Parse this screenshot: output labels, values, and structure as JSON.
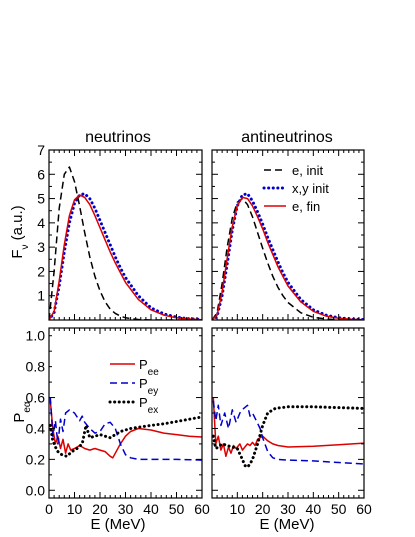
{
  "chart_data": [
    {
      "type": "line",
      "panel": "top-left",
      "title": "neutrinos",
      "xlabel": "",
      "ylabel": "F_ν (a.u.)",
      "xlim": [
        0,
        60
      ],
      "ylim": [
        0,
        7
      ],
      "yticks": [
        "1",
        "2",
        "3",
        "4",
        "5",
        "6",
        "7"
      ],
      "x": [
        0,
        2,
        4,
        6,
        8,
        10,
        12,
        14,
        16,
        18,
        20,
        22,
        24,
        26,
        28,
        30,
        35,
        40,
        45,
        50,
        55,
        60
      ],
      "series": [
        {
          "name": "e, init",
          "color": "#000000",
          "dash": "dashed",
          "values": [
            0,
            2.0,
            4.6,
            6.0,
            6.3,
            5.7,
            4.7,
            3.6,
            2.6,
            1.8,
            1.2,
            0.75,
            0.45,
            0.27,
            0.16,
            0.09,
            0.02,
            0,
            0,
            0,
            0,
            0
          ]
        },
        {
          "name": "x,y init",
          "color": "#0000cc",
          "dash": "dotted",
          "values": [
            0,
            0.3,
            1.4,
            2.8,
            4.0,
            4.8,
            5.15,
            5.2,
            5.0,
            4.6,
            4.1,
            3.6,
            3.1,
            2.6,
            2.15,
            1.75,
            1.0,
            0.5,
            0.25,
            0.12,
            0.05,
            0.02
          ]
        },
        {
          "name": "e, fin",
          "color": "#dd0000",
          "dash": "solid",
          "values": [
            0,
            0.35,
            1.6,
            3.1,
            4.3,
            4.95,
            5.15,
            5.05,
            4.75,
            4.3,
            3.8,
            3.3,
            2.8,
            2.35,
            1.95,
            1.55,
            0.85,
            0.42,
            0.2,
            0.09,
            0.04,
            0.01
          ]
        }
      ]
    },
    {
      "type": "line",
      "panel": "top-right",
      "title": "antineutrinos",
      "xlabel": "",
      "ylabel": "",
      "xlim": [
        0,
        60
      ],
      "ylim": [
        0,
        7
      ],
      "legend": [
        {
          "label": "e, init",
          "color": "#000000",
          "dash": "dashed"
        },
        {
          "label": "x,y init",
          "color": "#0000cc",
          "dash": "dotted"
        },
        {
          "label": "e, fin",
          "color": "#dd0000",
          "dash": "solid"
        }
      ],
      "x": [
        0,
        2,
        4,
        6,
        8,
        10,
        12,
        14,
        16,
        18,
        20,
        22,
        24,
        26,
        28,
        30,
        35,
        40,
        45,
        50,
        55,
        60
      ],
      "series": [
        {
          "name": "e, init",
          "color": "#000000",
          "dash": "dashed",
          "values": [
            0,
            0.3,
            1.5,
            3.0,
            4.2,
            4.85,
            5.0,
            4.75,
            4.25,
            3.6,
            2.95,
            2.35,
            1.8,
            1.35,
            1.0,
            0.72,
            0.3,
            0.11,
            0.04,
            0.01,
            0,
            0
          ]
        },
        {
          "name": "x,y init",
          "color": "#0000cc",
          "dash": "dotted",
          "values": [
            0,
            0.15,
            1.0,
            2.3,
            3.7,
            4.7,
            5.15,
            5.2,
            4.9,
            4.45,
            3.95,
            3.4,
            2.9,
            2.4,
            1.95,
            1.55,
            0.85,
            0.42,
            0.2,
            0.09,
            0.04,
            0.02
          ]
        },
        {
          "name": "e, fin",
          "color": "#dd0000",
          "dash": "solid",
          "values": [
            0,
            0.2,
            1.15,
            2.55,
            3.85,
            4.7,
            5.05,
            5.0,
            4.7,
            4.25,
            3.75,
            3.2,
            2.7,
            2.2,
            1.8,
            1.4,
            0.75,
            0.36,
            0.16,
            0.07,
            0.03,
            0.01
          ]
        }
      ]
    },
    {
      "type": "line",
      "panel": "bottom-left",
      "title": "",
      "xlabel": "E (MeV)",
      "ylabel": "P_eα",
      "xlim": [
        0,
        60
      ],
      "ylim": [
        -0.05,
        1.05
      ],
      "xticks": [
        "0",
        "10",
        "20",
        "30",
        "40",
        "50",
        "60"
      ],
      "yticks": [
        "0.0",
        "0.2",
        "0.4",
        "0.6",
        "0.8",
        "1.0"
      ],
      "legend": [
        {
          "label": "P",
          "sub": "ee",
          "color": "#dd0000",
          "dash": "solid"
        },
        {
          "label": "P",
          "sub": "ey",
          "color": "#0000cc",
          "dash": "dashed"
        },
        {
          "label": "P",
          "sub": "ex",
          "color": "#000000",
          "dash": "dotted"
        }
      ],
      "series": [
        {
          "name": "Pee",
          "color": "#dd0000",
          "dash": "solid",
          "points": [
            [
              0.5,
              0.58
            ],
            [
              1.5,
              0.4
            ],
            [
              2.5,
              0.3
            ],
            [
              3.5,
              0.35
            ],
            [
              4.5,
              0.27
            ],
            [
              5.5,
              0.33
            ],
            [
              6.5,
              0.24
            ],
            [
              7.5,
              0.3
            ],
            [
              8.5,
              0.26
            ],
            [
              10,
              0.27
            ],
            [
              12,
              0.29
            ],
            [
              14,
              0.27
            ],
            [
              16,
              0.26
            ],
            [
              18,
              0.27
            ],
            [
              20,
              0.26
            ],
            [
              22,
              0.25
            ],
            [
              24,
              0.22
            ],
            [
              25,
              0.21
            ],
            [
              26,
              0.24
            ],
            [
              28,
              0.3
            ],
            [
              30,
              0.35
            ],
            [
              32,
              0.38
            ],
            [
              35,
              0.4
            ],
            [
              40,
              0.39
            ],
            [
              45,
              0.37
            ],
            [
              50,
              0.36
            ],
            [
              55,
              0.35
            ],
            [
              60,
              0.345
            ]
          ]
        },
        {
          "name": "Pey",
          "color": "#0000cc",
          "dash": "dashed",
          "points": [
            [
              0.5,
              0.6
            ],
            [
              1.5,
              0.35
            ],
            [
              2.5,
              0.45
            ],
            [
              3.5,
              0.3
            ],
            [
              4.5,
              0.46
            ],
            [
              5.5,
              0.38
            ],
            [
              6.5,
              0.5
            ],
            [
              8,
              0.52
            ],
            [
              10,
              0.5
            ],
            [
              12,
              0.45
            ],
            [
              13,
              0.48
            ],
            [
              14,
              0.44
            ],
            [
              16,
              0.4
            ],
            [
              18,
              0.37
            ],
            [
              20,
              0.38
            ],
            [
              22,
              0.43
            ],
            [
              24,
              0.44
            ],
            [
              26,
              0.4
            ],
            [
              28,
              0.3
            ],
            [
              30,
              0.23
            ],
            [
              32,
              0.21
            ],
            [
              35,
              0.2
            ],
            [
              40,
              0.2
            ],
            [
              50,
              0.2
            ],
            [
              60,
              0.195
            ]
          ]
        },
        {
          "name": "Pex",
          "color": "#000000",
          "dash": "dotted",
          "points": [
            [
              0.5,
              0.42
            ],
            [
              1.5,
              0.32
            ],
            [
              2.5,
              0.28
            ],
            [
              3.5,
              0.25
            ],
            [
              5,
              0.23
            ],
            [
              7,
              0.22
            ],
            [
              9,
              0.25
            ],
            [
              11,
              0.27
            ],
            [
              13,
              0.3
            ],
            [
              14.5,
              0.42
            ],
            [
              16,
              0.34
            ],
            [
              18,
              0.35
            ],
            [
              20,
              0.36
            ],
            [
              22,
              0.35
            ],
            [
              24,
              0.34
            ],
            [
              26,
              0.36
            ],
            [
              28,
              0.38
            ],
            [
              32,
              0.4
            ],
            [
              36,
              0.41
            ],
            [
              40,
              0.42
            ],
            [
              45,
              0.43
            ],
            [
              50,
              0.445
            ],
            [
              55,
              0.46
            ],
            [
              60,
              0.475
            ]
          ]
        }
      ]
    },
    {
      "type": "line",
      "panel": "bottom-right",
      "title": "",
      "xlabel": "E (MeV)",
      "ylabel": "",
      "xlim": [
        0,
        60
      ],
      "ylim": [
        -0.05,
        1.05
      ],
      "xticks": [
        "10",
        "20",
        "30",
        "40",
        "50",
        "60"
      ],
      "series": [
        {
          "name": "Pee",
          "color": "#dd0000",
          "dash": "solid",
          "points": [
            [
              0.5,
              0.6
            ],
            [
              1.5,
              0.3
            ],
            [
              2.5,
              0.35
            ],
            [
              3.5,
              0.26
            ],
            [
              4.5,
              0.3
            ],
            [
              5.5,
              0.22
            ],
            [
              6.5,
              0.28
            ],
            [
              7.5,
              0.24
            ],
            [
              8.5,
              0.29
            ],
            [
              9.5,
              0.27
            ],
            [
              11,
              0.3
            ],
            [
              12,
              0.26
            ],
            [
              13,
              0.28
            ],
            [
              14,
              0.3
            ],
            [
              15,
              0.29
            ],
            [
              16,
              0.31
            ],
            [
              17,
              0.29
            ],
            [
              18,
              0.33
            ],
            [
              20,
              0.35
            ],
            [
              22,
              0.32
            ],
            [
              24,
              0.3
            ],
            [
              26,
              0.29
            ],
            [
              30,
              0.28
            ],
            [
              40,
              0.285
            ],
            [
              50,
              0.295
            ],
            [
              60,
              0.305
            ]
          ]
        },
        {
          "name": "Pey",
          "color": "#0000cc",
          "dash": "dashed",
          "points": [
            [
              0.5,
              0.58
            ],
            [
              1.5,
              0.45
            ],
            [
              2.5,
              0.55
            ],
            [
              3.5,
              0.42
            ],
            [
              5,
              0.5
            ],
            [
              6.5,
              0.4
            ],
            [
              8,
              0.52
            ],
            [
              9.5,
              0.44
            ],
            [
              11,
              0.5
            ],
            [
              12.5,
              0.53
            ],
            [
              14,
              0.55
            ],
            [
              15,
              0.48
            ],
            [
              16,
              0.5
            ],
            [
              17.5,
              0.45
            ],
            [
              19,
              0.4
            ],
            [
              20,
              0.34
            ],
            [
              22,
              0.25
            ],
            [
              24,
              0.21
            ],
            [
              26,
              0.2
            ],
            [
              30,
              0.195
            ],
            [
              40,
              0.19
            ],
            [
              50,
              0.18
            ],
            [
              60,
              0.17
            ]
          ]
        },
        {
          "name": "Pex",
          "color": "#000000",
          "dash": "dotted",
          "points": [
            [
              0.5,
              0.35
            ],
            [
              1.5,
              0.27
            ],
            [
              2.5,
              0.28
            ],
            [
              4,
              0.3
            ],
            [
              6,
              0.29
            ],
            [
              8,
              0.28
            ],
            [
              10,
              0.27
            ],
            [
              12,
              0.2
            ],
            [
              13,
              0.16
            ],
            [
              14,
              0.15
            ],
            [
              15,
              0.17
            ],
            [
              16,
              0.2
            ],
            [
              17,
              0.25
            ],
            [
              18,
              0.3
            ],
            [
              20,
              0.42
            ],
            [
              22,
              0.5
            ],
            [
              25,
              0.53
            ],
            [
              30,
              0.54
            ],
            [
              40,
              0.54
            ],
            [
              50,
              0.535
            ],
            [
              60,
              0.53
            ]
          ]
        }
      ]
    }
  ]
}
